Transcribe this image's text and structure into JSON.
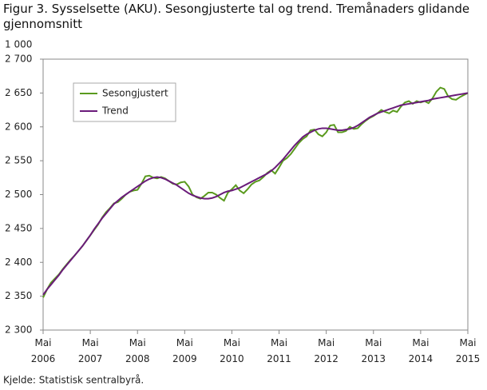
{
  "chart_data": {
    "type": "line",
    "title": "Figur 3. Sysselsette (AKU).  Sesongjusterte tal og trend. Tremånaders glidande gjennomsnitt",
    "y_unit": "1 000",
    "source": "Kjelde: Statistisk sentralbyrå.",
    "x": [
      "2006-05",
      "2006-06",
      "2006-07",
      "2006-08",
      "2006-09",
      "2006-10",
      "2006-11",
      "2006-12",
      "2007-01",
      "2007-02",
      "2007-03",
      "2007-04",
      "2007-05",
      "2007-06",
      "2007-07",
      "2007-08",
      "2007-09",
      "2007-10",
      "2007-11",
      "2007-12",
      "2008-01",
      "2008-02",
      "2008-03",
      "2008-04",
      "2008-05",
      "2008-06",
      "2008-07",
      "2008-08",
      "2008-09",
      "2008-10",
      "2008-11",
      "2008-12",
      "2009-01",
      "2009-02",
      "2009-03",
      "2009-04",
      "2009-05",
      "2009-06",
      "2009-07",
      "2009-08",
      "2009-09",
      "2009-10",
      "2009-11",
      "2009-12",
      "2010-01",
      "2010-02",
      "2010-03",
      "2010-04",
      "2010-05",
      "2010-06",
      "2010-07",
      "2010-08",
      "2010-09",
      "2010-10",
      "2010-11",
      "2010-12",
      "2011-01",
      "2011-02",
      "2011-03",
      "2011-04",
      "2011-05",
      "2011-06",
      "2011-07",
      "2011-08",
      "2011-09",
      "2011-10",
      "2011-11",
      "2011-12",
      "2012-01",
      "2012-02",
      "2012-03",
      "2012-04",
      "2012-05",
      "2012-06",
      "2012-07",
      "2012-08",
      "2012-09",
      "2012-10",
      "2012-11",
      "2012-12",
      "2013-01",
      "2013-02",
      "2013-03",
      "2013-04",
      "2013-05",
      "2013-06",
      "2013-07",
      "2013-08",
      "2013-09",
      "2013-10",
      "2013-11",
      "2013-12",
      "2014-01",
      "2014-02",
      "2014-03",
      "2014-04",
      "2014-05",
      "2014-06",
      "2014-07",
      "2014-08",
      "2014-09",
      "2014-10",
      "2014-11",
      "2014-12",
      "2015-01",
      "2015-02",
      "2015-03",
      "2015-04",
      "2015-05"
    ],
    "series": [
      {
        "name": "Sesongjustert",
        "color": "#5a9a1e",
        "values": [
          2348,
          2360,
          2370,
          2376,
          2382,
          2390,
          2397,
          2404,
          2410,
          2417,
          2424,
          2432,
          2440,
          2448,
          2456,
          2466,
          2474,
          2480,
          2487,
          2489,
          2494,
          2500,
          2504,
          2506,
          2507,
          2516,
          2527,
          2528,
          2525,
          2524,
          2526,
          2524,
          2520,
          2516,
          2515,
          2518,
          2519,
          2512,
          2500,
          2496,
          2494,
          2498,
          2503,
          2503,
          2500,
          2495,
          2491,
          2503,
          2508,
          2514,
          2506,
          2502,
          2508,
          2515,
          2519,
          2521,
          2526,
          2532,
          2536,
          2531,
          2540,
          2550,
          2554,
          2560,
          2568,
          2576,
          2582,
          2586,
          2595,
          2596,
          2589,
          2586,
          2592,
          2602,
          2603,
          2592,
          2592,
          2594,
          2600,
          2597,
          2598,
          2604,
          2609,
          2613,
          2616,
          2620,
          2625,
          2622,
          2620,
          2624,
          2622,
          2630,
          2636,
          2638,
          2634,
          2638,
          2636,
          2638,
          2635,
          2642,
          2652,
          2658,
          2656,
          2645,
          2641,
          2640,
          2644,
          2647,
          2650
        ]
      },
      {
        "name": "Trend",
        "color": "#6a1b7a",
        "values": [
          2352,
          2360,
          2367,
          2374,
          2381,
          2389,
          2396,
          2403,
          2410,
          2417,
          2424,
          2432,
          2440,
          2449,
          2457,
          2465,
          2472,
          2479,
          2486,
          2491,
          2496,
          2500,
          2504,
          2508,
          2512,
          2516,
          2520,
          2523,
          2525,
          2526,
          2525,
          2523,
          2520,
          2517,
          2514,
          2510,
          2506,
          2502,
          2499,
          2497,
          2495,
          2494,
          2494,
          2495,
          2497,
          2500,
          2503,
          2505,
          2506,
          2508,
          2510,
          2513,
          2516,
          2519,
          2522,
          2525,
          2528,
          2531,
          2535,
          2540,
          2546,
          2552,
          2559,
          2566,
          2573,
          2579,
          2585,
          2589,
          2592,
          2595,
          2597,
          2598,
          2598,
          2597,
          2596,
          2595,
          2595,
          2596,
          2597,
          2599,
          2602,
          2606,
          2610,
          2614,
          2617,
          2620,
          2622,
          2624,
          2626,
          2628,
          2630,
          2632,
          2633,
          2634,
          2635,
          2636,
          2637,
          2638,
          2639,
          2641,
          2642,
          2643,
          2644,
          2645,
          2646,
          2647,
          2648,
          2649,
          2650
        ]
      }
    ],
    "xlim": [
      "2006-05",
      "2015-05"
    ],
    "xticks": [
      {
        "value": "2006-05",
        "label": "Mai 2006"
      },
      {
        "value": "2007-05",
        "label": "Mai 2007"
      },
      {
        "value": "2008-05",
        "label": "Mai 2008"
      },
      {
        "value": "2009-05",
        "label": "Mai 2009"
      },
      {
        "value": "2010-05",
        "label": "Mai 2010"
      },
      {
        "value": "2011-05",
        "label": "Mai 2011"
      },
      {
        "value": "2012-05",
        "label": "Mai 2012"
      },
      {
        "value": "2013-05",
        "label": "Mai 2013"
      },
      {
        "value": "2014-05",
        "label": "Mai 2014"
      },
      {
        "value": "2015-05",
        "label": "Mai 2015"
      }
    ],
    "ylim": [
      2300,
      2700
    ],
    "yticks": [
      {
        "value": 2300,
        "label": "2 300"
      },
      {
        "value": 2350,
        "label": "2 350"
      },
      {
        "value": 2400,
        "label": "2 400"
      },
      {
        "value": 2450,
        "label": "2 450"
      },
      {
        "value": 2500,
        "label": "2 500"
      },
      {
        "value": 2550,
        "label": "2 550"
      },
      {
        "value": 2600,
        "label": "2 600"
      },
      {
        "value": 2650,
        "label": "2 650"
      },
      {
        "value": 2700,
        "label": "2 700"
      }
    ],
    "grid": false,
    "legend": "upper left"
  }
}
